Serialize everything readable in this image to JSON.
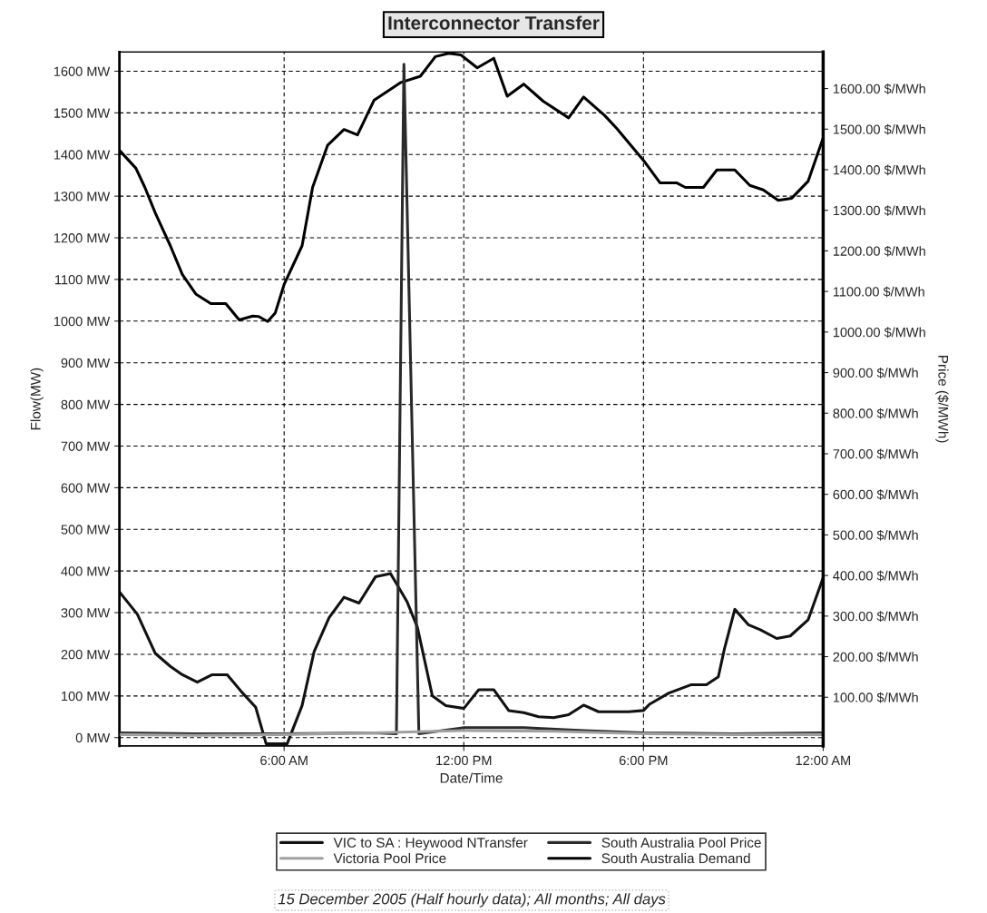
{
  "chart_data": {
    "type": "line",
    "title": "Interconnector Transfer",
    "xlabel": "Date/Time",
    "ylabel": "Flow(MW)",
    "y2label": "Price ($/MWh)",
    "annotations": [
      "15 December 2005 (Half hourly data); All months; All days"
    ],
    "xlim": [
      0.5,
      24
    ],
    "xticks": [
      {
        "value": 6,
        "label": "6:00 AM"
      },
      {
        "value": 12,
        "label": "12:00 PM"
      },
      {
        "value": 18,
        "label": "6:00 PM"
      },
      {
        "value": 24,
        "label": "12:00 AM"
      }
    ],
    "ylim": [
      -20,
      1646
    ],
    "yticks": [
      {
        "value": 0,
        "label": "0 MW"
      },
      {
        "value": 100,
        "label": "100 MW"
      },
      {
        "value": 200,
        "label": "200 MW"
      },
      {
        "value": 300,
        "label": "300 MW"
      },
      {
        "value": 400,
        "label": "400 MW"
      },
      {
        "value": 500,
        "label": "500 MW"
      },
      {
        "value": 600,
        "label": "600 MW"
      },
      {
        "value": 700,
        "label": "700 MW"
      },
      {
        "value": 800,
        "label": "800 MW"
      },
      {
        "value": 900,
        "label": "900 MW"
      },
      {
        "value": 1000,
        "label": "1000 MW"
      },
      {
        "value": 1100,
        "label": "1100 MW"
      },
      {
        "value": 1200,
        "label": "1200 MW"
      },
      {
        "value": 1300,
        "label": "1300 MW"
      },
      {
        "value": 1400,
        "label": "1400 MW"
      },
      {
        "value": 1500,
        "label": "1500 MW"
      },
      {
        "value": 1600,
        "label": "1600 MW"
      }
    ],
    "y2lim": [
      -20,
      1690
    ],
    "y2ticks": [
      {
        "value": 100,
        "label": "100.00 $/MWh"
      },
      {
        "value": 200,
        "label": "200.00 $/MWh"
      },
      {
        "value": 300,
        "label": "300.00 $/MWh"
      },
      {
        "value": 400,
        "label": "400.00 $/MWh"
      },
      {
        "value": 500,
        "label": "500.00 $/MWh"
      },
      {
        "value": 600,
        "label": "600.00 $/MWh"
      },
      {
        "value": 700,
        "label": "700.00 $/MWh"
      },
      {
        "value": 800,
        "label": "800.00 $/MWh"
      },
      {
        "value": 900,
        "label": "900.00 $/MWh"
      },
      {
        "value": 1000,
        "label": "1000.00 $/MWh"
      },
      {
        "value": 1100,
        "label": "1100.00 $/MWh"
      },
      {
        "value": 1200,
        "label": "1200.00 $/MWh"
      },
      {
        "value": 1300,
        "label": "1300.00 $/MWh"
      },
      {
        "value": 1400,
        "label": "1400.00 $/MWh"
      },
      {
        "value": 1500,
        "label": "1500.00 $/MWh"
      },
      {
        "value": 1600,
        "label": "1600.00 $/MWh"
      }
    ],
    "grid": true,
    "legend": "bottom",
    "marker": "none",
    "line_style": "solid",
    "series": [
      {
        "name": "VIC to SA : Heywood NTransfer",
        "color": "#111111",
        "x": [
          0.5,
          1.1,
          1.7,
          2.2,
          2.6,
          3.1,
          3.6,
          4.1,
          4.6,
          5.05,
          5.4,
          6.1,
          6.6,
          7.0,
          7.5,
          8.0,
          8.5,
          9.05,
          9.55,
          9.75,
          10.1,
          10.45,
          10.95,
          11.4,
          12.0,
          12.5,
          13.0,
          13.5,
          14.0,
          14.5,
          15.0,
          15.5,
          16.0,
          16.5,
          17.0,
          17.5,
          18.0,
          18.2,
          18.85,
          19.6,
          20.1,
          20.5,
          20.7,
          21.05,
          21.5,
          21.9,
          22.45,
          22.9,
          23.5,
          24.0
        ],
        "values": [
          350,
          296,
          202,
          171,
          151,
          133,
          151,
          151,
          108,
          73,
          -15,
          -15,
          77,
          206,
          288,
          337,
          323,
          386,
          394,
          370,
          327,
          265,
          100,
          77,
          70,
          115,
          115,
          65,
          60,
          50,
          48,
          55,
          78,
          62,
          62,
          62,
          65,
          80,
          107,
          127,
          127,
          146,
          212,
          308,
          271,
          259,
          238,
          244,
          283,
          384
        ]
      },
      {
        "name": "South Australia Pool Price",
        "color": "#2a2a2a",
        "axis": "y2",
        "x": [
          0.5,
          3.0,
          6.0,
          9.0,
          9.75,
          10.0,
          10.5,
          12.0,
          14.0,
          16.0,
          18.0,
          21.0,
          24.0
        ],
        "values": [
          12,
          10,
          10,
          12,
          10,
          1660,
          10,
          25,
          25,
          18,
          12,
          10,
          12
        ]
      },
      {
        "name": "Victoria Pool Price",
        "color": "#a0a0a0",
        "axis": "y2",
        "x": [
          0.5,
          3.0,
          6.0,
          9.0,
          12.0,
          15.0,
          18.0,
          21.0,
          24.0
        ],
        "values": [
          8,
          6,
          8,
          12,
          18,
          16,
          10,
          8,
          8
        ]
      },
      {
        "name": "South Australia Demand",
        "color": "#000000",
        "x": [
          0.5,
          1.05,
          1.35,
          1.7,
          2.2,
          2.6,
          3.05,
          3.55,
          4.05,
          4.5,
          4.95,
          5.15,
          5.45,
          5.7,
          6.0,
          6.6,
          6.95,
          7.45,
          8.0,
          8.45,
          9.0,
          9.9,
          10.55,
          11.05,
          11.5,
          11.9,
          12.45,
          13.0,
          13.45,
          14.0,
          14.65,
          15.5,
          16.0,
          16.7,
          17.1,
          18.0,
          18.55,
          19.1,
          19.4,
          20.0,
          20.45,
          21.05,
          21.55,
          22.0,
          22.5,
          22.95,
          23.5,
          24.0
        ],
        "values": [
          1410,
          1367,
          1321,
          1259,
          1181,
          1112,
          1065,
          1042,
          1042,
          1003,
          1012,
          1011,
          999,
          1019,
          1088,
          1181,
          1321,
          1422,
          1460,
          1447,
          1530,
          1573,
          1588,
          1635,
          1643,
          1639,
          1608,
          1631,
          1540,
          1569,
          1528,
          1488,
          1538,
          1494,
          1463,
          1386,
          1332,
          1332,
          1321,
          1321,
          1363,
          1363,
          1326,
          1315,
          1290,
          1295,
          1336,
          1440
        ]
      }
    ]
  }
}
